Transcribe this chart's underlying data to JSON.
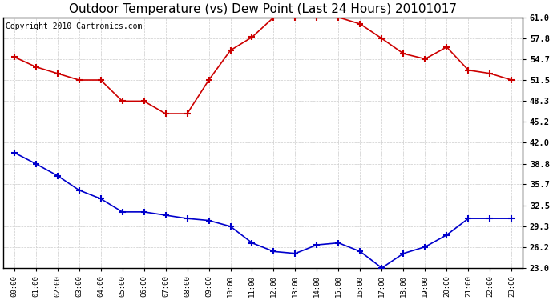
{
  "title": "Outdoor Temperature (vs) Dew Point (Last 24 Hours) 20101017",
  "copyright": "Copyright 2010 Cartronics.com",
  "x_labels": [
    "00:00",
    "01:00",
    "02:00",
    "03:00",
    "04:00",
    "05:00",
    "06:00",
    "07:00",
    "08:00",
    "09:00",
    "10:00",
    "11:00",
    "12:00",
    "13:00",
    "14:00",
    "15:00",
    "16:00",
    "17:00",
    "18:00",
    "19:00",
    "20:00",
    "21:00",
    "22:00",
    "23:00"
  ],
  "temp_data": [
    55.0,
    53.5,
    52.5,
    51.5,
    51.5,
    48.3,
    48.3,
    46.4,
    46.4,
    51.5,
    56.0,
    58.0,
    61.0,
    61.0,
    61.0,
    61.0,
    60.0,
    57.8,
    55.5,
    54.7,
    56.5,
    53.0,
    52.5,
    51.5
  ],
  "dew_data": [
    40.5,
    38.8,
    37.0,
    34.8,
    33.5,
    31.5,
    31.5,
    31.0,
    30.5,
    30.2,
    29.3,
    26.8,
    25.5,
    25.2,
    26.5,
    26.8,
    25.5,
    23.0,
    25.2,
    26.2,
    28.0,
    30.5,
    30.5,
    30.5
  ],
  "y_ticks": [
    23.0,
    26.2,
    29.3,
    32.5,
    35.7,
    38.8,
    42.0,
    45.2,
    48.3,
    51.5,
    54.7,
    57.8,
    61.0
  ],
  "y_min": 23.0,
  "y_max": 61.0,
  "temp_color": "#cc0000",
  "dew_color": "#0000cc",
  "bg_color": "#ffffff",
  "grid_color": "#cccccc",
  "title_fontsize": 11,
  "copyright_fontsize": 7
}
